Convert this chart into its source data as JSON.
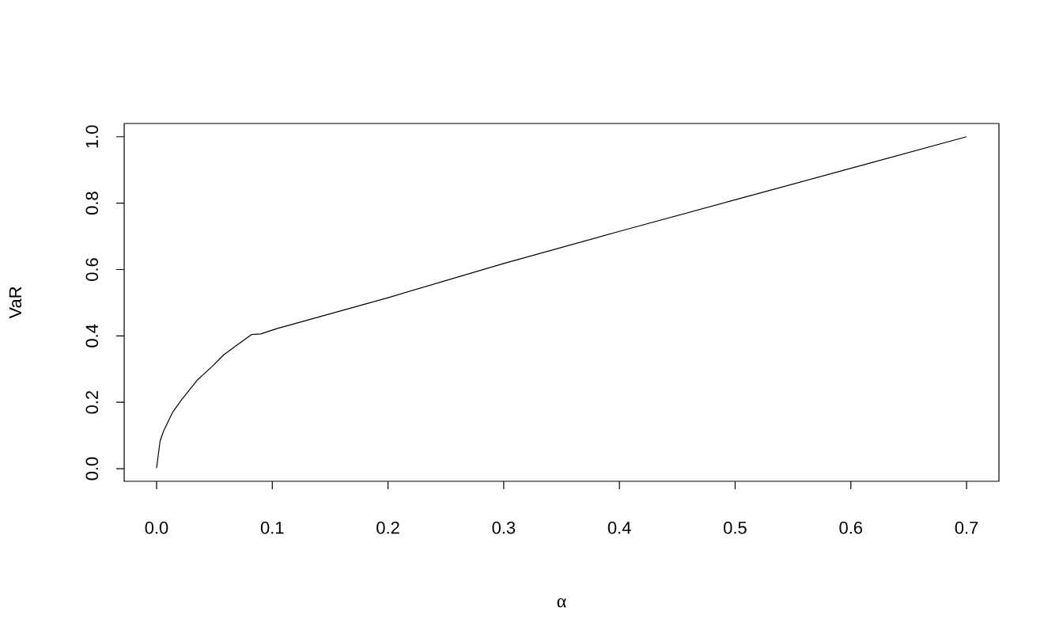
{
  "chart_data": {
    "type": "line",
    "xlabel": "α",
    "ylabel": "VaR",
    "color": "#000000",
    "x": [
      0,
      0.003,
      0.006,
      0.0137,
      0.0217,
      0.0355,
      0.049,
      0.058,
      0.072,
      0.082,
      0.09,
      0.104,
      0.2,
      0.3,
      0.4,
      0.5,
      0.6,
      0.7
    ],
    "values": [
      0.002,
      0.083,
      0.113,
      0.169,
      0.208,
      0.268,
      0.311,
      0.343,
      0.379,
      0.404,
      0.406,
      0.422,
      0.515,
      0.618,
      0.715,
      0.81,
      0.905,
      1.0
    ],
    "xlim": [
      -0.028,
      0.728
    ],
    "ylim": [
      -0.038,
      1.04
    ],
    "xticks": [
      {
        "value": 0,
        "label": "0.0"
      },
      0.1,
      0.2,
      0.3,
      0.4,
      0.5,
      0.6,
      0.7
    ],
    "yticks": [
      {
        "value": 0,
        "label": "0.0"
      },
      0.2,
      0.4,
      0.6,
      0.8,
      {
        "value": 1,
        "label": "1.0"
      }
    ],
    "grid": false,
    "marker": "none",
    "line_style": "solid"
  }
}
